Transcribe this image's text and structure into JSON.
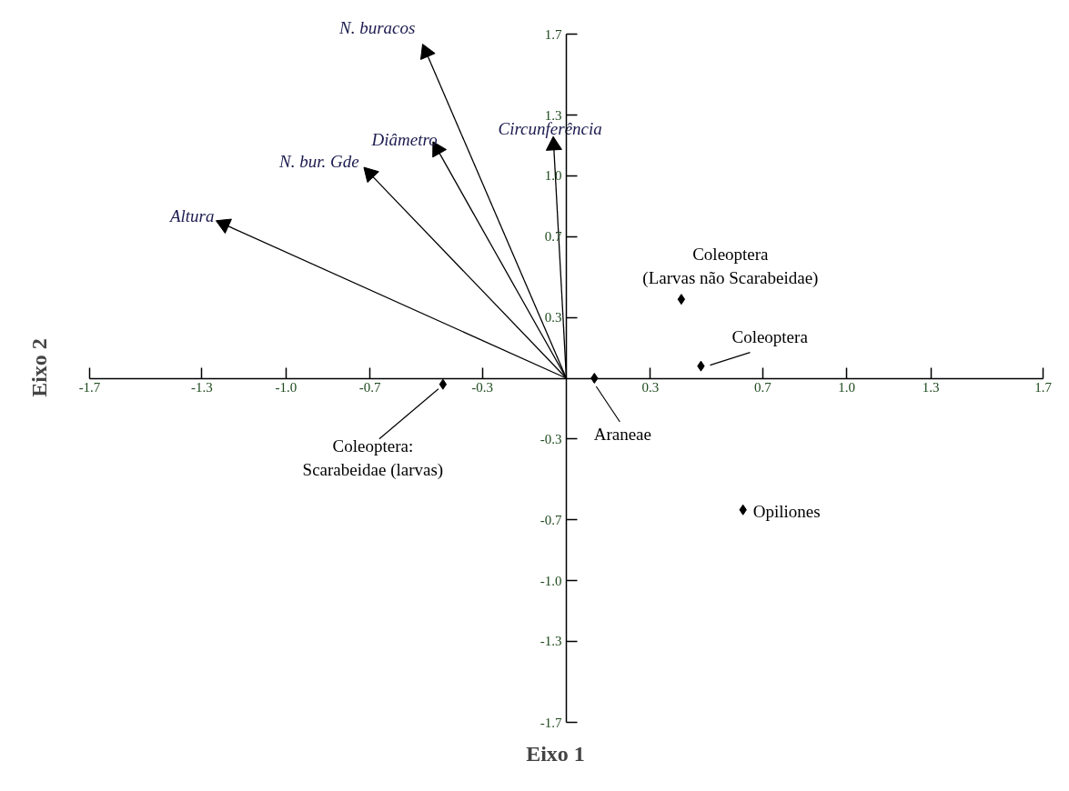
{
  "chart_data": {
    "type": "scatter",
    "xlabel": "Eixo 1",
    "ylabel": "Eixo 2",
    "xlim": [
      -1.7,
      1.7
    ],
    "ylim": [
      -1.7,
      1.7
    ],
    "xticks": [
      {
        "value": -1.7,
        "label": "-1.7"
      },
      {
        "value": -1.3,
        "label": "-1.3"
      },
      {
        "value": -1.0,
        "label": "-1.0"
      },
      {
        "value": -0.7,
        "label": "-0.7"
      },
      {
        "value": -0.3,
        "label": "-0.3"
      },
      {
        "value": 0.3,
        "label": "0.3"
      },
      {
        "value": 0.7,
        "label": "0.7"
      },
      {
        "value": 1.0,
        "label": "1.0"
      },
      {
        "value": 1.3,
        "label": "1.3"
      },
      {
        "value": 1.7,
        "label": "1.7"
      }
    ],
    "yticks": [
      {
        "value": -1.7,
        "label": "-1.7"
      },
      {
        "value": -1.3,
        "label": "-1.3"
      },
      {
        "value": -1.0,
        "label": "-1.0"
      },
      {
        "value": -0.7,
        "label": "-0.7"
      },
      {
        "value": -0.3,
        "label": "-0.3"
      },
      {
        "value": 0.3,
        "label": "0.3"
      },
      {
        "value": 0.7,
        "label": "0.7"
      },
      {
        "value": 1.0,
        "label": "1.0"
      },
      {
        "value": 1.3,
        "label": "1.3"
      },
      {
        "value": 1.7,
        "label": "1.7"
      }
    ],
    "grid": false,
    "series": [
      {
        "type": "line",
        "name": "N. buracos",
        "color": "#000000",
        "x": [
          0,
          -0.5
        ],
        "values": [
          0,
          1.61
        ]
      },
      {
        "type": "line",
        "name": "Circunferência",
        "color": "#000000",
        "x": [
          0,
          -0.045
        ],
        "values": [
          0,
          1.15
        ]
      },
      {
        "type": "line",
        "name": "Diâmetro",
        "color": "#000000",
        "x": [
          0,
          -0.46
        ],
        "values": [
          0,
          1.13
        ]
      },
      {
        "type": "line",
        "name": "N. bur. Gde",
        "color": "#000000",
        "x": [
          0,
          -0.7
        ],
        "values": [
          0,
          1.01
        ]
      },
      {
        "type": "line",
        "name": "Altura",
        "color": "#000000",
        "x": [
          0,
          -1.22
        ],
        "values": [
          0,
          0.76
        ]
      },
      {
        "marker": "diamond",
        "color": "#000000",
        "x": [
          0.41,
          0.48,
          0.1,
          0.63,
          -0.44
        ],
        "values": [
          0.39,
          0.06,
          0.0,
          -0.65,
          -0.03
        ]
      }
    ],
    "annotations": [
      {
        "text": "Coleoptera\n(Larvas não Scarabeidae)",
        "x": 0.41,
        "y": 0.39
      },
      {
        "text": "Coleoptera",
        "x": 0.48,
        "y": 0.06
      },
      {
        "text": "Araneae",
        "x": 0.1,
        "y": 0.0
      },
      {
        "text": "Opiliones",
        "x": 0.63,
        "y": -0.65
      },
      {
        "text": "Coleoptera:\nScarabeidae (larvas)",
        "x": -0.44,
        "y": -0.03
      }
    ]
  }
}
